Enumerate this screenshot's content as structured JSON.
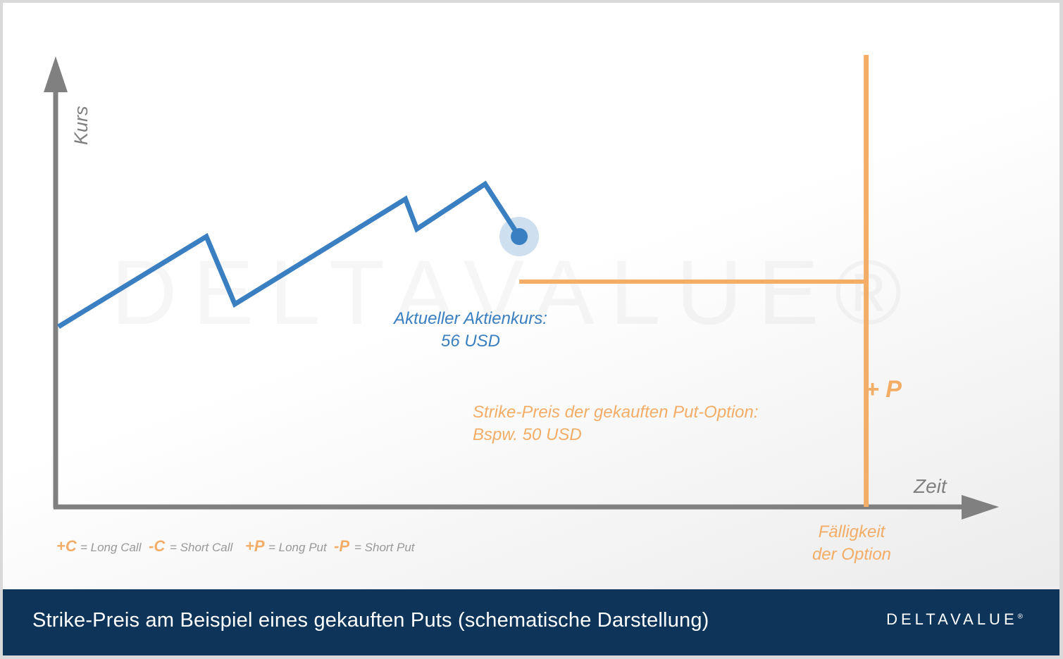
{
  "chart_data": {
    "type": "line",
    "title": "Strike-Preis am Beispiel eines gekauften Puts (schematische Darstellung)",
    "xlabel": "Zeit",
    "ylabel": "Kurs",
    "series": [
      {
        "values": [
          {
            "x": 0,
            "y": 44
          },
          {
            "x": 1.3,
            "y": 56
          },
          {
            "x": 1.55,
            "y": 47
          },
          {
            "x": 3.05,
            "y": 61
          },
          {
            "x": 3.15,
            "y": 57
          },
          {
            "x": 3.75,
            "y": 63
          },
          {
            "x": 4.05,
            "y": 56
          }
        ],
        "color": "#3a7fc1"
      }
    ],
    "strike": {
      "value": 50,
      "x_start": 4.05,
      "x_end": 7.1,
      "color": "#f3ad67"
    },
    "expiry_x": 7.1,
    "xlim": [
      0,
      8.0
    ],
    "ylim": [
      20,
      80
    ],
    "grid": false
  },
  "current_price": {
    "label": "Aktueller Aktienkurs:",
    "value": "56 USD"
  },
  "strike_label": {
    "line1": "Strike-Preis der gekauften Put-Option:",
    "line2": "Bspw. 50 USD"
  },
  "position_marker": "+ P",
  "expiry_label": {
    "line1": "Fälligkeit",
    "line2": "der Option"
  },
  "legend": [
    {
      "symbol": "+C",
      "text": "= Long Call"
    },
    {
      "symbol": "-C",
      "text": "= Short Call"
    },
    {
      "symbol": "+P",
      "text": "= Long Put"
    },
    {
      "symbol": "-P",
      "text": "= Short Put"
    }
  ],
  "watermark": "DELTAVALUE®",
  "footer": {
    "title": "Strike-Preis am Beispiel eines gekauften Puts (schematische Darstellung)",
    "logo": "DELTAVALUE",
    "logo_mark": "®"
  },
  "colors": {
    "blue": "#3a7fc1",
    "orange": "#f3ad67",
    "axis": "#808080",
    "footer": "#0e3559"
  }
}
